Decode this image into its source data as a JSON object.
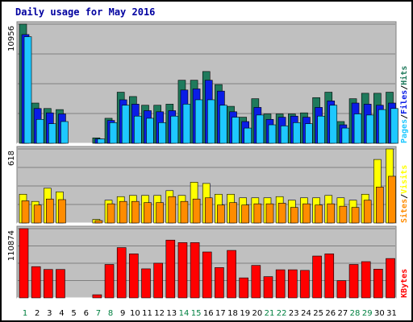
{
  "chart_data": {
    "type": "bar",
    "title": "Daily usage for May 2016",
    "colors": {
      "background": "#c0c0c0",
      "hits": "#1f7a5c",
      "files": "#0a1de6",
      "pages": "#1ec8ff",
      "visits": "#ffff00",
      "sites": "#ff8c00",
      "kbytes": "#ff0000",
      "weekend_label": "#008040",
      "weekday_label": "#000000"
    },
    "categories": [
      "1",
      "2",
      "3",
      "4",
      "5",
      "6",
      "7",
      "8",
      "9",
      "10",
      "11",
      "12",
      "13",
      "14",
      "15",
      "16",
      "17",
      "18",
      "19",
      "20",
      "21",
      "22",
      "23",
      "24",
      "25",
      "26",
      "27",
      "28",
      "29",
      "30",
      "31"
    ],
    "weekend_days": [
      "1",
      "7",
      "8",
      "14",
      "15",
      "21",
      "22",
      "28",
      "29"
    ],
    "panels": [
      {
        "id": "hits-files-pages",
        "side_labels": [
          "Pages",
          "Files",
          "Hits"
        ],
        "side_colors": [
          "#1ec8ff",
          "#0a1de6",
          "#1f7a5c"
        ],
        "ytick": "10956",
        "ymax": 10956,
        "series": [
          {
            "name": "Hits",
            "values": [
              10956,
              3700,
              3200,
              3100,
              0,
              0,
              500,
              2300,
              4700,
              4300,
              3500,
              3500,
              3600,
              5800,
              5800,
              6600,
              5400,
              3400,
              2400,
              4100,
              2700,
              2700,
              2700,
              2800,
              4200,
              4700,
              2000,
              4100,
              4600,
              4600,
              4700
            ]
          },
          {
            "name": "Files",
            "values": [
              10000,
              3200,
              2800,
              2700,
              0,
              0,
              400,
              2100,
              4000,
              3600,
              3000,
              2900,
              3000,
              4900,
              5000,
              5800,
              4800,
              2900,
              2000,
              3300,
              2200,
              2400,
              2500,
              2400,
              3300,
              3900,
              1700,
              3700,
              3600,
              3500,
              3700
            ]
          },
          {
            "name": "Pages",
            "values": [
              9800,
              2200,
              1800,
              2000,
              0,
              0,
              400,
              1900,
              3500,
              2500,
              2300,
              1900,
              2500,
              3600,
              4000,
              4000,
              3500,
              2400,
              1400,
              2600,
              1700,
              1600,
              1900,
              1800,
              2500,
              3500,
              1400,
              2700,
              2600,
              3100,
              3200
            ]
          }
        ]
      },
      {
        "id": "visits-sites",
        "side_labels": [
          "Sites",
          "Visits"
        ],
        "side_colors": [
          "#ff8c00",
          "#ffff00"
        ],
        "ytick": "618",
        "ymax": 618,
        "series": [
          {
            "name": "Visits",
            "values": [
              240,
              180,
              290,
              260,
              0,
              0,
              30,
              190,
              220,
              230,
              230,
              230,
              270,
              230,
              340,
              330,
              240,
              240,
              210,
              210,
              210,
              220,
              190,
              210,
              210,
              230,
              210,
              190,
              240,
              530,
              618
            ]
          },
          {
            "name": "Sites",
            "values": [
              185,
              150,
              200,
              195,
              0,
              0,
              20,
              160,
              180,
              180,
              170,
              170,
              220,
              180,
              200,
              210,
              150,
              170,
              150,
              160,
              160,
              165,
              130,
              160,
              150,
              160,
              140,
              130,
              190,
              300,
              390
            ]
          }
        ]
      },
      {
        "id": "kbytes",
        "side_labels": [
          "KBytes"
        ],
        "side_colors": [
          "#ff0000"
        ],
        "ytick": "110874",
        "ymax": 110874,
        "series": [
          {
            "name": "KBytes",
            "values": [
              110874,
              50000,
              45500,
              45500,
              0,
              0,
              5000,
              53500,
              80500,
              70500,
              46500,
              55500,
              92500,
              88500,
              88500,
              73500,
              48500,
              76000,
              32000,
              52000,
              34000,
              45000,
              45000,
              44000,
              67000,
              70500,
              27500,
              53500,
              58000,
              46000,
              63000
            ]
          }
        ]
      }
    ]
  }
}
